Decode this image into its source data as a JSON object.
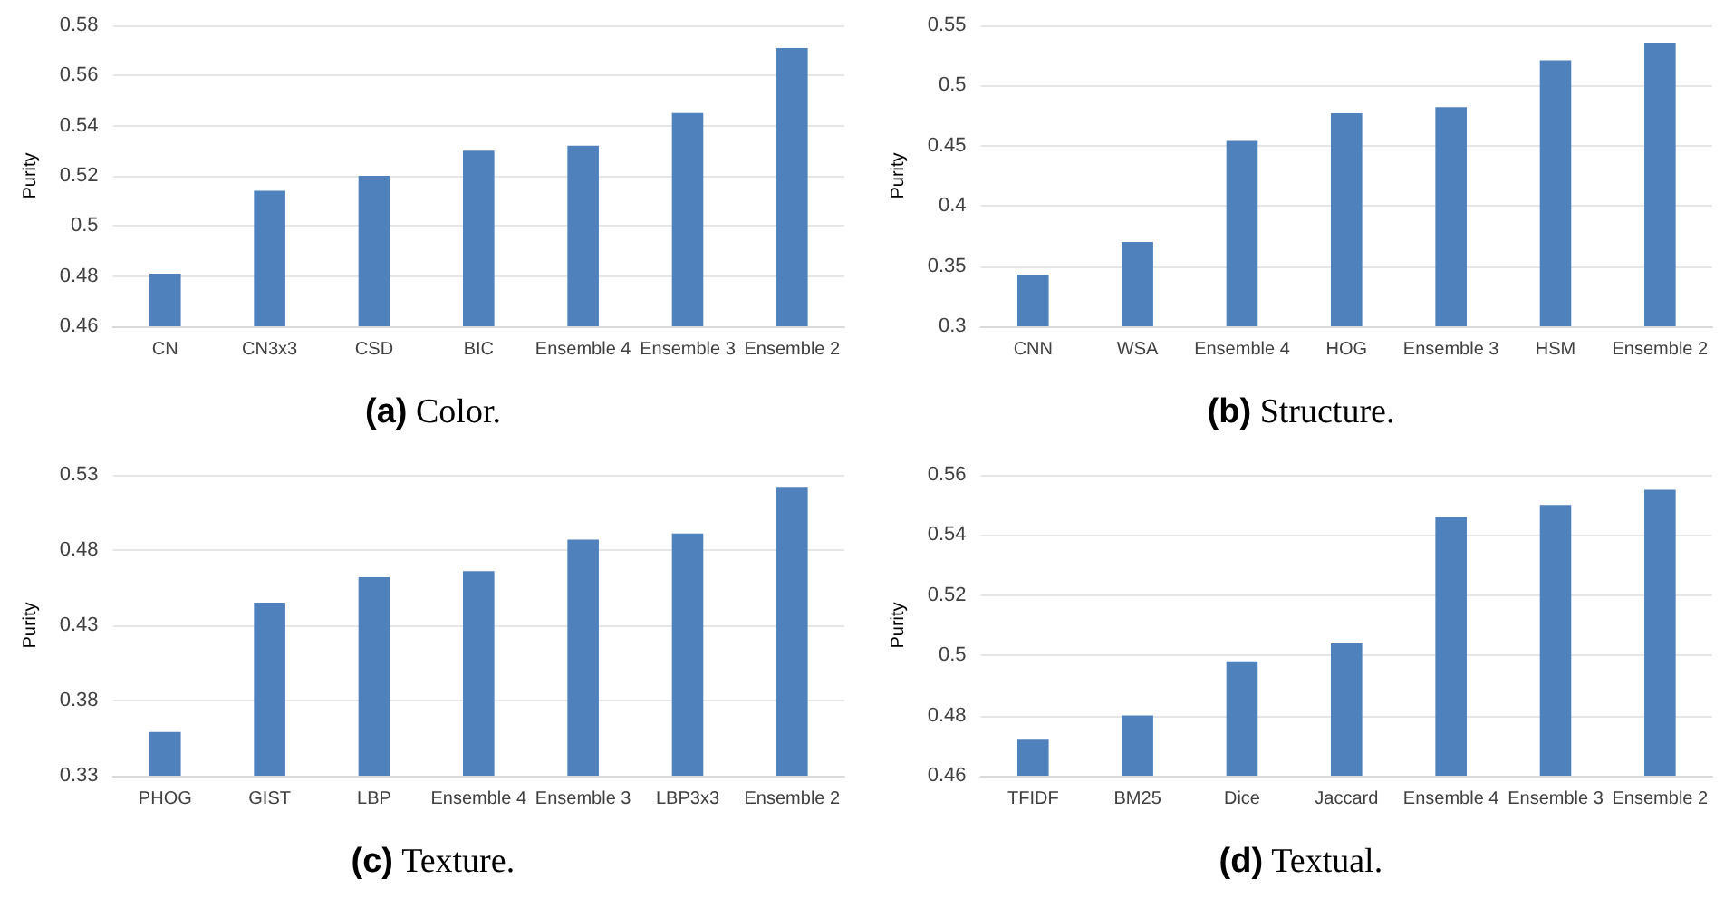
{
  "chart_data": [
    {
      "type": "bar",
      "title": "(a) Color.",
      "ylabel": "Purity",
      "categories": [
        "CN",
        "CN3x3",
        "CSD",
        "BIC",
        "Ensemble 4",
        "Ensemble 3",
        "Ensemble 2"
      ],
      "values": [
        0.481,
        0.514,
        0.52,
        0.53,
        0.532,
        0.545,
        0.571
      ],
      "color": "#4f81bd",
      "ylim": [
        0.46,
        0.58
      ],
      "yticks": [
        0.46,
        0.48,
        0.5,
        0.52,
        0.54,
        0.56,
        0.58
      ],
      "grid": "y"
    },
    {
      "type": "bar",
      "title": "(b) Structure.",
      "ylabel": "Purity",
      "categories": [
        "CNN",
        "WSA",
        "Ensemble 4",
        "HOG",
        "Ensemble 3",
        "HSM",
        "Ensemble 2"
      ],
      "values": [
        0.343,
        0.37,
        0.454,
        0.477,
        0.482,
        0.521,
        0.535
      ],
      "color": "#4f81bd",
      "ylim": [
        0.3,
        0.55
      ],
      "yticks": [
        0.3,
        0.35,
        0.4,
        0.45,
        0.5,
        0.55
      ],
      "grid": "y"
    },
    {
      "type": "bar",
      "title": "(c) Texture.",
      "ylabel": "Purity",
      "categories": [
        "PHOG",
        "GIST",
        "LBP",
        "Ensemble 4",
        "Ensemble 3",
        "LBP3x3",
        "Ensemble 2"
      ],
      "values": [
        0.359,
        0.445,
        0.462,
        0.466,
        0.487,
        0.491,
        0.522
      ],
      "color": "#4f81bd",
      "ylim": [
        0.33,
        0.53
      ],
      "yticks": [
        0.33,
        0.38,
        0.43,
        0.48,
        0.53
      ],
      "grid": "y"
    },
    {
      "type": "bar",
      "title": "(d) Textual.",
      "ylabel": "Purity",
      "categories": [
        "TFIDF",
        "BM25",
        "Dice",
        "Jaccard",
        "Ensemble 4",
        "Ensemble 3",
        "Ensemble 2"
      ],
      "values": [
        0.472,
        0.48,
        0.498,
        0.504,
        0.546,
        0.55,
        0.555
      ],
      "color": "#4f81bd",
      "ylim": [
        0.46,
        0.56
      ],
      "yticks": [
        0.46,
        0.48,
        0.5,
        0.52,
        0.54,
        0.56
      ],
      "grid": "y"
    }
  ]
}
